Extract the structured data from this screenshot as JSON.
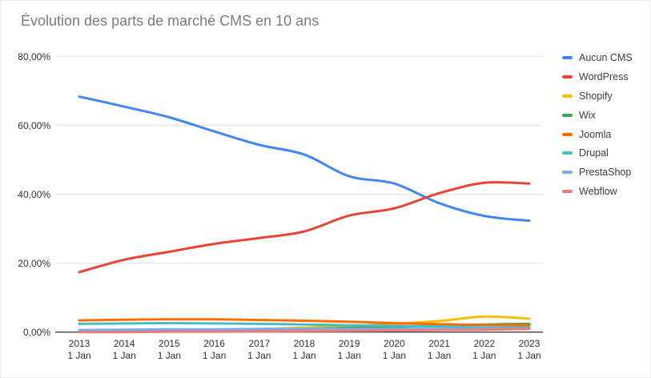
{
  "title": "Évolution des parts de marché CMS en 10 ans",
  "background_color": "#ffffff",
  "title_color": "#7b7b7b",
  "chart_data": {
    "type": "line",
    "title": "Évolution des parts de marché CMS en 10 ans",
    "xlabel": "",
    "ylabel": "",
    "ylim": [
      0,
      80
    ],
    "grid": true,
    "smooth_lines": true,
    "legend_position": "right",
    "y_tick_values": [
      0,
      20,
      40,
      60,
      80
    ],
    "y_tick_labels": [
      "0,00%",
      "20,00%",
      "40,00%",
      "60,00%",
      "80,00%"
    ],
    "categories": [
      "2013",
      "2014",
      "2015",
      "2016",
      "2017",
      "2018",
      "2019",
      "2020",
      "2021",
      "2022",
      "2023"
    ],
    "x_tick_line2": "1 Jan",
    "gridline_color": "#e3e3e3",
    "baseline_color": "#424242",
    "series": [
      {
        "name": "Aucun CMS",
        "color": "#4285F4",
        "values": [
          68.3,
          65.4,
          62.3,
          58.2,
          54.3,
          51.5,
          45.2,
          43.1,
          37.4,
          33.7,
          32.3
        ]
      },
      {
        "name": "WordPress",
        "color": "#EA4335",
        "values": [
          17.4,
          21.0,
          23.3,
          25.6,
          27.3,
          29.2,
          33.8,
          35.9,
          40.3,
          43.3,
          43.1
        ]
      },
      {
        "name": "Shopify",
        "color": "#FBBC04",
        "values": [
          0.1,
          0.2,
          0.4,
          0.6,
          0.9,
          1.3,
          1.7,
          2.4,
          3.2,
          4.5,
          3.9
        ]
      },
      {
        "name": "Wix",
        "color": "#34A853",
        "values": [
          0.1,
          0.2,
          0.3,
          0.4,
          0.6,
          0.9,
          1.2,
          1.5,
          1.9,
          2.2,
          2.4
        ]
      },
      {
        "name": "Joomla",
        "color": "#FF6D01",
        "values": [
          3.4,
          3.6,
          3.7,
          3.7,
          3.5,
          3.3,
          3.0,
          2.6,
          2.3,
          2.1,
          2.0
        ]
      },
      {
        "name": "Drupal",
        "color": "#46BDC6",
        "values": [
          2.4,
          2.5,
          2.6,
          2.5,
          2.4,
          2.2,
          2.0,
          1.8,
          1.6,
          1.4,
          1.3
        ]
      },
      {
        "name": "PrestaShop",
        "color": "#7BAAF7",
        "values": [
          0.6,
          0.7,
          0.8,
          0.8,
          0.9,
          0.9,
          0.9,
          0.9,
          0.9,
          0.9,
          0.9
        ]
      },
      {
        "name": "Webflow",
        "color": "#F07B72",
        "values": [
          0.0,
          0.0,
          0.1,
          0.1,
          0.2,
          0.3,
          0.4,
          0.5,
          0.6,
          0.7,
          0.9
        ]
      }
    ]
  }
}
